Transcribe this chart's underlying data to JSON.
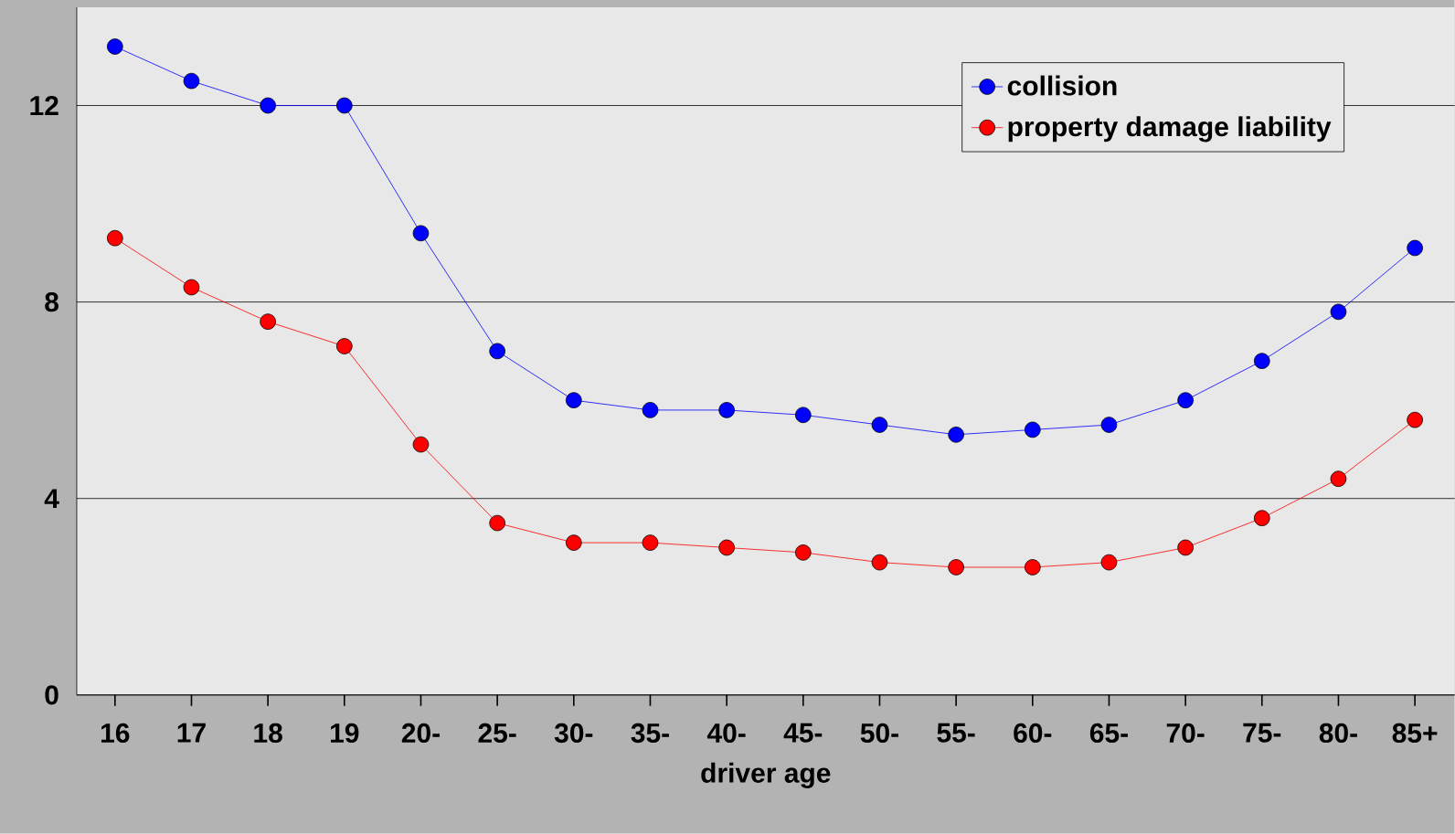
{
  "chart_data": {
    "type": "line",
    "xlabel": "driver age",
    "categories": [
      "16",
      "17",
      "18",
      "19",
      "20-",
      "25-",
      "30-",
      "35-",
      "40-",
      "45-",
      "50-",
      "55-",
      "60-",
      "65-",
      "70-",
      "75-",
      "80-",
      "85+"
    ],
    "series": [
      {
        "name": "collision",
        "color": "#0000ff",
        "values": [
          13.2,
          12.5,
          12.0,
          12.0,
          9.4,
          7.0,
          6.0,
          5.8,
          5.8,
          5.7,
          5.5,
          5.3,
          5.4,
          5.5,
          6.0,
          6.8,
          7.8,
          9.1
        ]
      },
      {
        "name": "property damage liability",
        "color": "#ff0000",
        "values": [
          9.3,
          8.3,
          7.6,
          7.1,
          5.1,
          3.5,
          3.1,
          3.1,
          3.0,
          2.9,
          2.7,
          2.6,
          2.6,
          2.7,
          3.0,
          3.6,
          4.4,
          5.6
        ]
      }
    ],
    "ylim": [
      0,
      14
    ],
    "yticks": [
      0,
      4,
      8,
      12
    ],
    "grid": "y",
    "legend": "top right",
    "marker": "circle",
    "line_style": "solid"
  }
}
